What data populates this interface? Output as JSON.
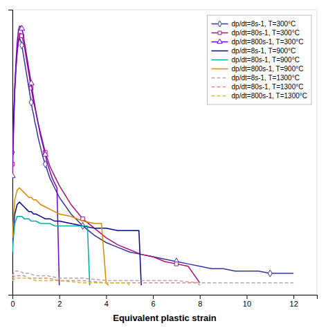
{
  "chart_data": {
    "type": "line",
    "x_label": "Equivalent plastic strain",
    "xlim": [
      0,
      13
    ],
    "xticks": [
      0,
      2,
      4,
      6,
      8,
      10,
      12
    ],
    "ylim": [
      0,
      1.2
    ],
    "yticks": [],
    "tick_labels": "x",
    "grid": false,
    "legend": "upper-right",
    "series": [
      {
        "name": "dp/dt=8s-1, T=300°C",
        "color": "#3333aa",
        "line_style": "solid",
        "marker": "diamond",
        "x": [
          0.0,
          0.05,
          0.1,
          0.15,
          0.2,
          0.25,
          0.3,
          0.35,
          0.4,
          0.45,
          0.5,
          0.55,
          0.6,
          0.65,
          0.7,
          0.75,
          0.8,
          0.85,
          0.9,
          0.95,
          1.0,
          1.1,
          1.2,
          1.3,
          1.4,
          1.5,
          1.6,
          1.7,
          1.8,
          1.9,
          2.0,
          2.5,
          3.0,
          3.5,
          4.0,
          4.5,
          5.0,
          5.5,
          6.0,
          6.5,
          7.0,
          7.5,
          8.0,
          8.5,
          9.0,
          9.5,
          10.0,
          10.5,
          11.0,
          11.5,
          12.0
        ],
        "values": [
          0.6,
          0.75,
          0.88,
          0.96,
          1.02,
          1.06,
          1.08,
          1.07,
          1.05,
          1.02,
          0.99,
          0.96,
          0.93,
          0.9,
          0.87,
          0.84,
          0.81,
          0.78,
          0.76,
          0.73,
          0.71,
          0.66,
          0.62,
          0.58,
          0.55,
          0.52,
          0.49,
          0.47,
          0.45,
          0.43,
          0.41,
          0.34,
          0.29,
          0.25,
          0.22,
          0.2,
          0.18,
          0.17,
          0.16,
          0.15,
          0.14,
          0.13,
          0.12,
          0.11,
          0.11,
          0.1,
          0.1,
          0.1,
          0.09,
          0.09,
          0.09
        ]
      },
      {
        "name": "dp/dt=80s-1, T=300°C",
        "color": "#aa1177",
        "line_style": "solid",
        "marker": "square",
        "x": [
          0.0,
          0.05,
          0.1,
          0.15,
          0.2,
          0.25,
          0.3,
          0.35,
          0.4,
          0.45,
          0.5,
          0.55,
          0.6,
          0.65,
          0.7,
          0.75,
          0.8,
          0.85,
          0.9,
          0.95,
          1.0,
          1.1,
          1.2,
          1.3,
          1.4,
          1.5,
          1.6,
          1.7,
          1.8,
          1.9,
          2.0,
          2.5,
          3.0,
          3.5,
          4.0,
          4.5,
          5.0,
          5.5,
          6.0,
          6.5,
          7.0,
          7.5,
          8.0
        ],
        "values": [
          0.55,
          0.72,
          0.86,
          0.95,
          1.02,
          1.07,
          1.1,
          1.1,
          1.09,
          1.07,
          1.05,
          1.02,
          0.99,
          0.96,
          0.93,
          0.9,
          0.87,
          0.84,
          0.81,
          0.79,
          0.77,
          0.72,
          0.68,
          0.64,
          0.6,
          0.57,
          0.54,
          0.52,
          0.5,
          0.48,
          0.46,
          0.38,
          0.32,
          0.28,
          0.24,
          0.21,
          0.19,
          0.17,
          0.16,
          0.14,
          0.13,
          0.12,
          0.05
        ]
      },
      {
        "name": "dp/dt=800s-1, T=300°C",
        "color": "#7700cc",
        "line_style": "solid",
        "marker": "triangle",
        "x": [
          0.0,
          0.05,
          0.1,
          0.15,
          0.2,
          0.25,
          0.3,
          0.35,
          0.4,
          0.45,
          0.5,
          0.55,
          0.6,
          0.65,
          0.7,
          0.75,
          0.8,
          0.85,
          0.9,
          0.95,
          1.0,
          1.1,
          1.2,
          1.3,
          1.4,
          1.5,
          1.6,
          1.7,
          1.8,
          1.9,
          2.0
        ],
        "values": [
          0.5,
          0.7,
          0.87,
          0.98,
          1.06,
          1.11,
          1.13,
          1.13,
          1.12,
          1.1,
          1.07,
          1.04,
          1.01,
          0.98,
          0.95,
          0.92,
          0.89,
          0.86,
          0.83,
          0.8,
          0.77,
          0.72,
          0.67,
          0.63,
          0.59,
          0.55,
          0.52,
          0.49,
          0.47,
          0.45,
          0.04
        ]
      },
      {
        "name": "dp/dt=8s-1, T=900°C",
        "color": "#000099",
        "line_style": "solid",
        "x": [
          0.0,
          0.05,
          0.1,
          0.2,
          0.3,
          0.4,
          0.5,
          0.6,
          0.7,
          0.8,
          0.9,
          1.0,
          1.2,
          1.4,
          1.6,
          1.8,
          2.0,
          2.5,
          3.0,
          3.5,
          4.0,
          4.5,
          5.0,
          5.4,
          5.5
        ],
        "values": [
          0.22,
          0.29,
          0.34,
          0.38,
          0.39,
          0.38,
          0.37,
          0.36,
          0.35,
          0.35,
          0.34,
          0.34,
          0.33,
          0.32,
          0.32,
          0.31,
          0.31,
          0.3,
          0.29,
          0.28,
          0.28,
          0.27,
          0.27,
          0.27,
          0.04
        ]
      },
      {
        "name": "dp/dt=80s-1, T=900°C",
        "color": "#00aaaa",
        "line_style": "solid",
        "x": [
          0.0,
          0.05,
          0.1,
          0.2,
          0.3,
          0.4,
          0.5,
          0.6,
          0.7,
          0.8,
          0.9,
          1.0,
          1.2,
          1.4,
          1.6,
          1.8,
          2.0,
          2.5,
          3.0,
          3.2,
          3.3
        ],
        "values": [
          0.18,
          0.25,
          0.3,
          0.33,
          0.33,
          0.33,
          0.32,
          0.32,
          0.32,
          0.31,
          0.31,
          0.31,
          0.3,
          0.3,
          0.3,
          0.29,
          0.29,
          0.29,
          0.29,
          0.29,
          0.04
        ]
      },
      {
        "name": "dp/dt=800s-1, T=900°C",
        "color": "#dd8800",
        "line_style": "solid",
        "x": [
          0.0,
          0.05,
          0.1,
          0.2,
          0.3,
          0.4,
          0.5,
          0.6,
          0.7,
          0.8,
          0.9,
          1.0,
          1.2,
          1.4,
          1.6,
          1.8,
          2.0,
          2.5,
          3.0,
          3.5,
          3.8,
          4.0,
          4.1
        ],
        "values": [
          0.24,
          0.33,
          0.4,
          0.44,
          0.45,
          0.44,
          0.43,
          0.42,
          0.41,
          0.41,
          0.4,
          0.4,
          0.38,
          0.37,
          0.36,
          0.35,
          0.34,
          0.33,
          0.31,
          0.3,
          0.3,
          0.05,
          0.04
        ]
      },
      {
        "name": "dp/dt=8s-1, T=1300°C",
        "color": "#aaaaaa",
        "line_style": "dashed",
        "x": [
          0.0,
          0.1,
          0.2,
          0.3,
          0.5,
          0.7,
          1.0,
          1.5,
          2.0,
          3.0,
          4.0,
          5.0,
          6.0,
          7.0,
          8.0,
          9.0,
          10.0,
          11.0,
          12.0
        ],
        "values": [
          0.08,
          0.1,
          0.1,
          0.1,
          0.09,
          0.09,
          0.08,
          0.08,
          0.07,
          0.07,
          0.06,
          0.06,
          0.06,
          0.06,
          0.05,
          0.05,
          0.05,
          0.05,
          0.05
        ]
      },
      {
        "name": "dp/dt=80s-1, T=1300°C",
        "color": "#dd8888",
        "line_style": "dashed",
        "x": [
          0.0,
          0.1,
          0.2,
          0.3,
          0.5,
          0.7,
          1.0,
          1.5,
          2.0,
          3.0,
          4.0,
          5.0,
          6.0,
          7.0,
          7.9,
          8.0
        ],
        "values": [
          0.07,
          0.08,
          0.08,
          0.08,
          0.08,
          0.07,
          0.07,
          0.07,
          0.06,
          0.06,
          0.05,
          0.05,
          0.05,
          0.05,
          0.05,
          0.04
        ]
      },
      {
        "name": "dp/dt=800s-1, T=1300°C",
        "color": "#ccbb44",
        "line_style": "dashed",
        "x": [
          0.0,
          0.1,
          0.2,
          0.3,
          0.5,
          0.7,
          1.0,
          1.5,
          2.0,
          3.0,
          4.0,
          4.9,
          5.0
        ],
        "values": [
          0.06,
          0.07,
          0.07,
          0.07,
          0.07,
          0.07,
          0.06,
          0.06,
          0.06,
          0.05,
          0.05,
          0.05,
          0.04
        ]
      }
    ]
  }
}
